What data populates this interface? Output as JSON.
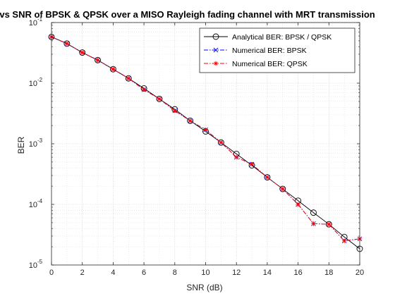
{
  "chart_data": {
    "type": "line",
    "title": "BER vs SNR of BPSK & QPSK over a MISO Rayleigh fading channel with MRT transmission",
    "xlabel": "SNR (dB)",
    "ylabel": "BER",
    "xlim": [
      0,
      20
    ],
    "ylim": [
      1e-05,
      0.1
    ],
    "yscale": "log",
    "grid": true,
    "minor_grid": true,
    "legend_position": "top-right",
    "x_ticks": [
      "0",
      "2",
      "4",
      "6",
      "8",
      "10",
      "12",
      "14",
      "16",
      "18",
      "20"
    ],
    "y_ticks": [
      {
        "base": "10",
        "exp": "-1"
      },
      {
        "base": "10",
        "exp": "-2"
      },
      {
        "base": "10",
        "exp": "-3"
      },
      {
        "base": "10",
        "exp": "-4"
      },
      {
        "base": "10",
        "exp": "-5"
      }
    ],
    "x": [
      0,
      1,
      2,
      3,
      4,
      5,
      6,
      7,
      8,
      9,
      10,
      11,
      12,
      13,
      14,
      15,
      16,
      17,
      18,
      19,
      20
    ],
    "series": [
      {
        "name": "Analytical BER: BPSK / QPSK",
        "color": "#000000",
        "line": "solid",
        "marker": "circle",
        "values": [
          0.058,
          0.045,
          0.032,
          0.024,
          0.017,
          0.012,
          0.0082,
          0.0055,
          0.0037,
          0.0024,
          0.0016,
          0.00105,
          0.00068,
          0.00044,
          0.00028,
          0.00018,
          0.000115,
          7.3e-05,
          4.7e-05,
          2.9e-05,
          1.85e-05
        ]
      },
      {
        "name": "Numerical BER: BPSK",
        "color": "#0000ff",
        "line": "dashdot",
        "marker": "x",
        "values": [
          0.058,
          0.045,
          0.032,
          0.024,
          0.017,
          0.012,
          0.0078,
          0.0055,
          0.0035,
          0.0024,
          0.0017,
          0.00105,
          0.0006,
          0.00046,
          0.00028,
          0.00018,
          0.0001,
          4.8e-05,
          4.7e-05,
          2.5e-05,
          2.7e-05
        ]
      },
      {
        "name": "Numerical BER: QPSK",
        "color": "#ff0000",
        "line": "dashdot",
        "marker": "star",
        "values": [
          0.058,
          0.045,
          0.032,
          0.024,
          0.017,
          0.012,
          0.0078,
          0.0055,
          0.0035,
          0.0024,
          0.0017,
          0.00105,
          0.0006,
          0.00046,
          0.00028,
          0.00018,
          0.0001,
          4.8e-05,
          4.7e-05,
          2.5e-05,
          2.7e-05
        ]
      }
    ]
  }
}
